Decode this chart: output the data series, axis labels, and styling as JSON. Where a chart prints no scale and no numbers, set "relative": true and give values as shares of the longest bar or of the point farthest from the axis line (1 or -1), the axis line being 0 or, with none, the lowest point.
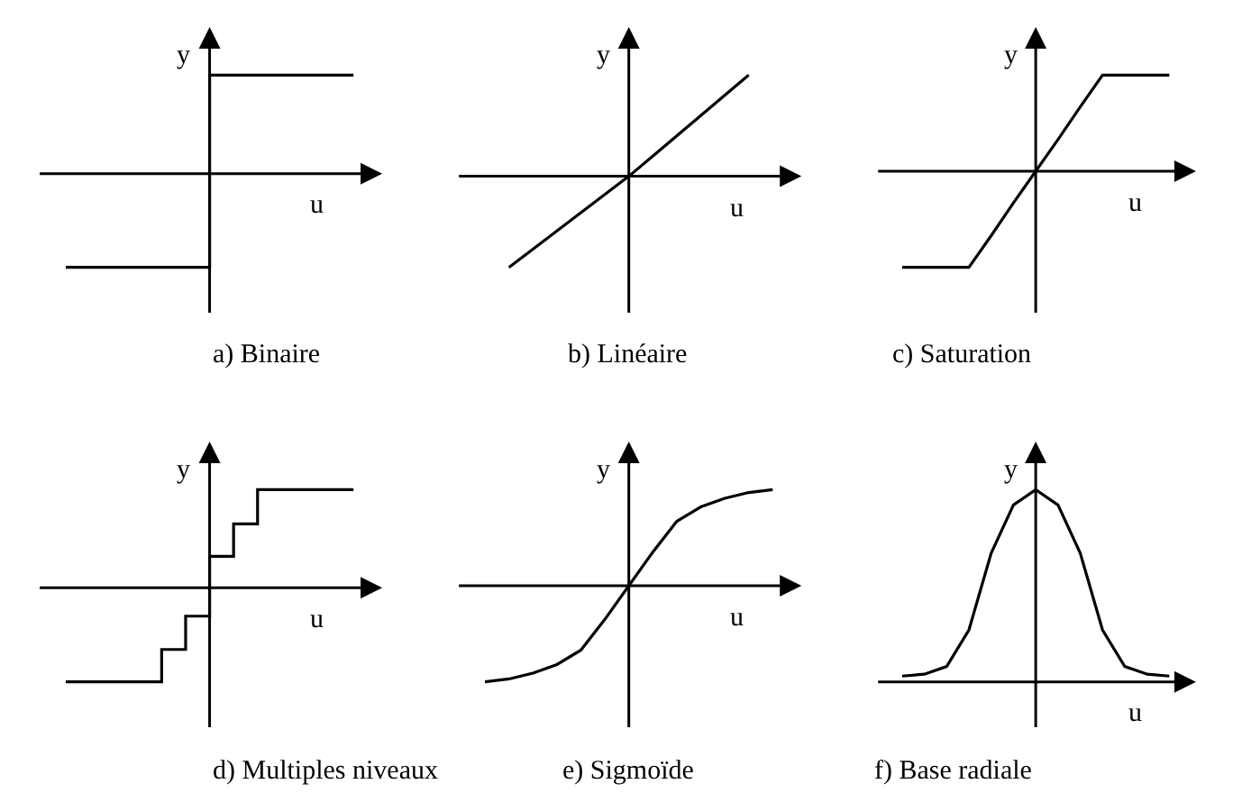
{
  "chart_data": [
    {
      "type": "step",
      "title": "a) Binaire",
      "xlabel": "u",
      "ylabel": "y",
      "relative": true,
      "color": "#000000",
      "categories": [
        null,
        null,
        null,
        null,
        null,
        null,
        null,
        null,
        null,
        null,
        null,
        null,
        null
      ],
      "values": [
        -0.95,
        -0.95,
        -0.95,
        -0.95,
        -0.95,
        -0.95,
        1,
        1,
        1,
        1,
        1,
        1,
        1
      ]
    },
    {
      "type": "line",
      "title": "b) Linéaire",
      "xlabel": "u",
      "ylabel": "y",
      "relative": true,
      "color": "#000000",
      "categories": [
        null,
        null,
        null,
        null,
        null,
        null,
        null,
        null,
        null,
        null,
        null,
        null,
        null
      ],
      "values": [
        null,
        -0.9,
        -0.72,
        -0.54,
        -0.36,
        -0.18,
        0,
        0.2,
        0.4,
        0.6,
        0.8,
        1,
        null
      ]
    },
    {
      "type": "line",
      "title": "c) Saturation",
      "xlabel": "u",
      "ylabel": "y",
      "relative": true,
      "color": "#000000",
      "categories": [
        null,
        null,
        null,
        null,
        null,
        null,
        null,
        null,
        null,
        null,
        null,
        null,
        null
      ],
      "values": [
        -1,
        -1,
        -1,
        -1,
        -0.67,
        -0.33,
        0,
        0.33,
        0.67,
        1,
        1,
        1,
        1
      ]
    },
    {
      "type": "step",
      "title": "d) Multiples niveaux",
      "xlabel": "u",
      "ylabel": "y",
      "relative": true,
      "color": "#000000",
      "categories": [
        null,
        null,
        null,
        null,
        null,
        null,
        null,
        null,
        null,
        null,
        null,
        null,
        null
      ],
      "values": [
        -0.96,
        -0.96,
        -0.96,
        -0.96,
        -0.63,
        -0.29,
        0.32,
        0.65,
        1,
        1,
        1,
        1,
        1
      ]
    },
    {
      "type": "line",
      "title": "e) Sigmoïde",
      "xlabel": "u",
      "ylabel": "y",
      "relative": true,
      "color": "#000000",
      "categories": [
        null,
        null,
        null,
        null,
        null,
        null,
        null,
        null,
        null,
        null,
        null,
        null,
        null
      ],
      "values": [
        -1,
        -0.97,
        -0.91,
        -0.82,
        -0.67,
        -0.35,
        0,
        0.35,
        0.67,
        0.82,
        0.91,
        0.97,
        1
      ]
    },
    {
      "type": "line",
      "title": "f) Base radiale",
      "xlabel": "u",
      "ylabel": "y",
      "relative": true,
      "color": "#000000",
      "categories": [
        null,
        null,
        null,
        null,
        null,
        null,
        null,
        null,
        null,
        null,
        null,
        null,
        null
      ],
      "values": [
        0.03,
        0.04,
        0.08,
        0.27,
        0.67,
        0.92,
        1,
        0.92,
        0.67,
        0.27,
        0.08,
        0.04,
        0.03
      ]
    }
  ]
}
